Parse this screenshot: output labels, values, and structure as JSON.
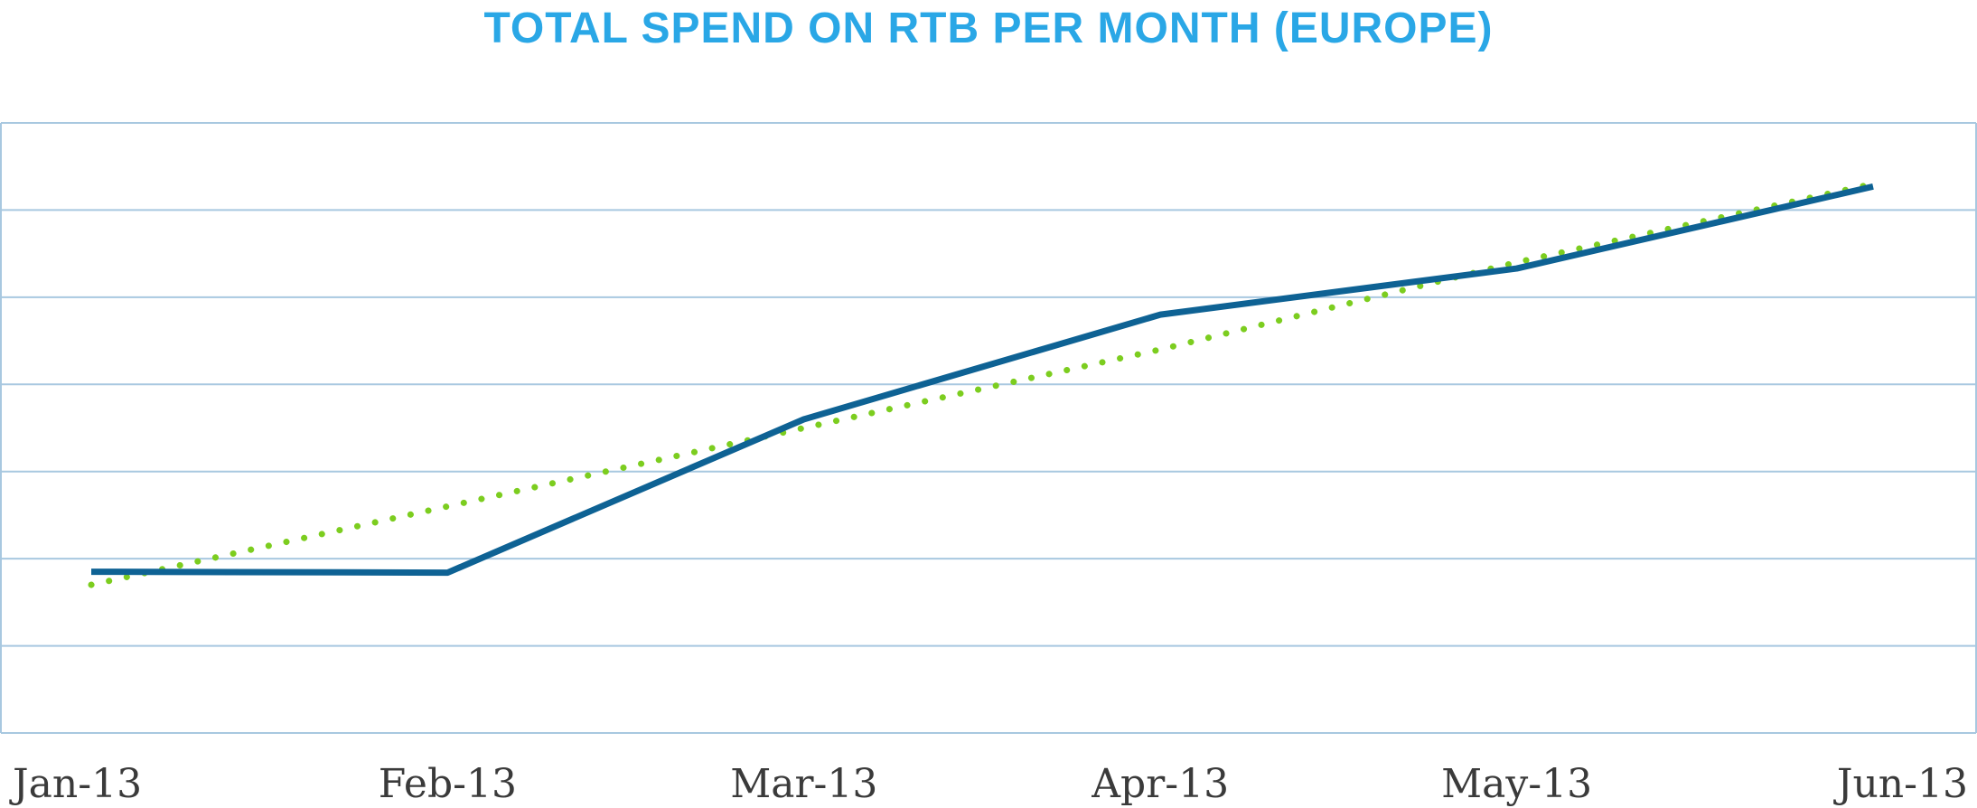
{
  "chart_data": {
    "type": "line",
    "title": "TOTAL SPEND ON RTB PER MONTH (EUROPE)",
    "xlabel": "",
    "ylabel": "",
    "categories": [
      "Jan-13",
      "Feb-13",
      "Mar-13",
      "Apr-13",
      "May-13",
      "Jun-13"
    ],
    "ylim": [
      0,
      7
    ],
    "grid": true,
    "y_tick_labels_shown": false,
    "legend": "none",
    "series": [
      {
        "style": "solid",
        "color": "#0e6294",
        "values": [
          1.85,
          1.84,
          3.6,
          4.8,
          5.33,
          6.27
        ]
      },
      {
        "style": "dotted-trendline",
        "color": "#7ccd1f",
        "values": [
          1.7,
          2.6,
          3.5,
          4.4,
          5.4,
          6.3
        ]
      }
    ],
    "colors": {
      "title": "#2aa7e6",
      "grid": "#a8c8e0",
      "tick_label": "#3a3a3a"
    }
  }
}
